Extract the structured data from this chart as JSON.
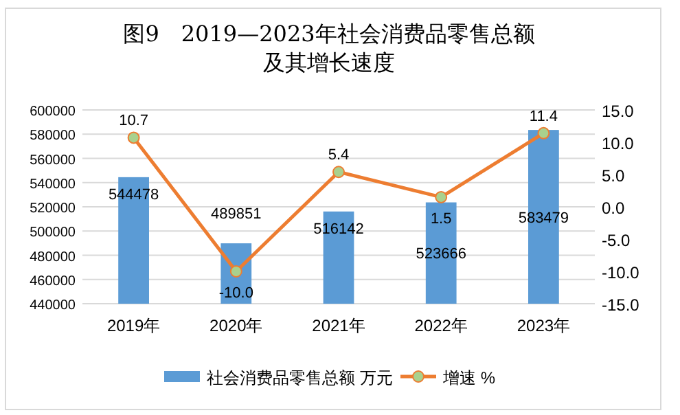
{
  "chart_data": {
    "type": "bar",
    "title": "图9　2019—2023年社会消费品零售总额及其增长速度",
    "categories": [
      "2019年",
      "2020年",
      "2021年",
      "2022年",
      "2023年"
    ],
    "series": [
      {
        "name": "社会消费品零售总额 万元",
        "color": "#5b9bd5",
        "values": [
          544478,
          489851,
          516142,
          523666,
          583479
        ]
      },
      {
        "name": "增速 %",
        "type": "line",
        "axis": "y2",
        "color": "#ed7d31",
        "values": [
          10.7,
          -10.0,
          5.4,
          1.5,
          11.4
        ],
        "value_labels": [
          "10.7",
          "-10.0",
          "5.4",
          "1.5",
          "11.4"
        ]
      }
    ],
    "ylim": [
      440000,
      600000
    ],
    "yticks": [
      440000,
      460000,
      480000,
      500000,
      520000,
      540000,
      560000,
      580000,
      600000
    ],
    "y2lim": [
      -15,
      15
    ],
    "y2ticks": [
      {
        "value": -15,
        "label": "-15.0"
      },
      {
        "value": -10,
        "label": "-10.0"
      },
      {
        "value": -5,
        "label": "-5.0"
      },
      {
        "value": 0,
        "label": "0.0"
      },
      {
        "value": 5,
        "label": "5.0"
      },
      {
        "value": 10,
        "label": "10.0"
      },
      {
        "value": 15,
        "label": "15.0"
      }
    ],
    "grid": "y",
    "legend": "bottom",
    "marker": "circle",
    "line_style": "solid",
    "data_labels": true
  }
}
